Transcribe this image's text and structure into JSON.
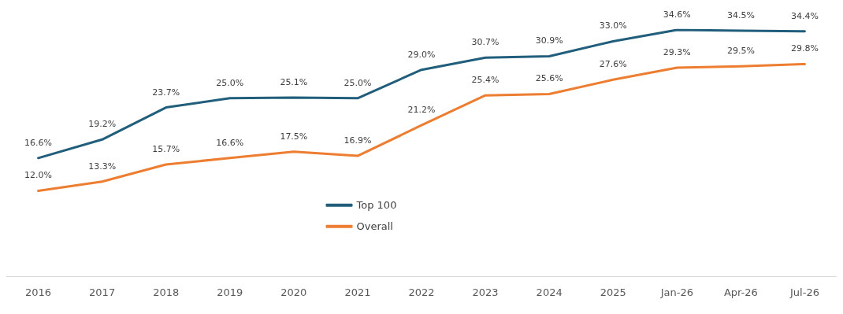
{
  "chart_data": {
    "type": "line",
    "categories": [
      "2016",
      "2017",
      "2018",
      "2019",
      "2020",
      "2021",
      "2022",
      "2023",
      "2024",
      "2025",
      "Jan-26",
      "Apr-26",
      "Jul-26"
    ],
    "series": [
      {
        "name": "Top 100",
        "color": "#215e7c",
        "values": [
          16.6,
          19.2,
          23.7,
          25.0,
          25.1,
          25.0,
          29.0,
          30.7,
          30.9,
          33.0,
          34.6,
          34.5,
          34.4
        ],
        "value_labels": [
          "16.6%",
          "19.2%",
          "23.7%",
          "25.0%",
          "25.1%",
          "25.0%",
          "29.0%",
          "30.7%",
          "30.9%",
          "33.0%",
          "34.6%",
          "34.5%",
          "34.4%"
        ]
      },
      {
        "name": "Overall",
        "color": "#ed7d31",
        "values": [
          12.0,
          13.3,
          15.7,
          16.6,
          17.5,
          16.9,
          21.2,
          25.4,
          25.6,
          27.6,
          29.3,
          29.5,
          29.8
        ],
        "value_labels": [
          "12.0%",
          "13.3%",
          "15.7%",
          "16.6%",
          "17.5%",
          "16.9%",
          "21.2%",
          "25.4%",
          "25.6%",
          "27.6%",
          "29.3%",
          "29.5%",
          "29.8%"
        ]
      }
    ],
    "grid": false,
    "legend": "center",
    "marker": "none",
    "line_style": "solid"
  }
}
